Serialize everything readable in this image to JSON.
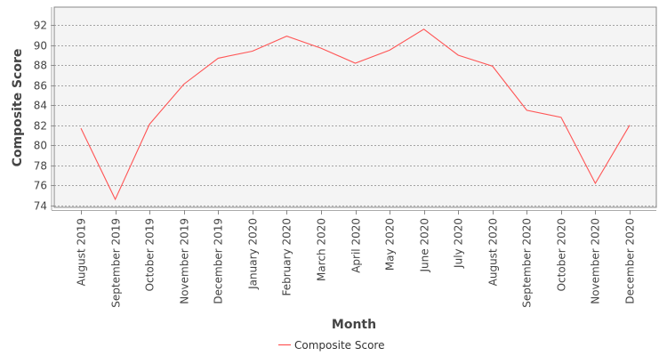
{
  "chart_data": {
    "type": "line",
    "title": "",
    "xlabel": "Month",
    "ylabel": "Composite Score",
    "categories": [
      "August 2019",
      "September 2019",
      "October 2019",
      "November 2019",
      "December 2019",
      "January 2020",
      "February 2020",
      "March 2020",
      "April 2020",
      "May 2020",
      "June 2020",
      "July 2020",
      "August 2020",
      "September 2020",
      "October 2020",
      "November 2020",
      "December 2020"
    ],
    "series": [
      {
        "name": "Composite Score",
        "color": "#ff5555",
        "values": [
          81.7,
          74.6,
          82.1,
          86.1,
          88.7,
          89.4,
          90.9,
          89.7,
          88.2,
          89.5,
          91.6,
          89.0,
          87.9,
          83.5,
          82.8,
          76.2,
          82.0
        ]
      }
    ],
    "ylim": [
      73.8,
      93.8
    ],
    "yticks": [
      74,
      76,
      78,
      80,
      82,
      84,
      86,
      88,
      90,
      92
    ],
    "grid": true,
    "legend": "bottom",
    "plot_background": "#f4f4f4",
    "grid_color": "#888888"
  }
}
